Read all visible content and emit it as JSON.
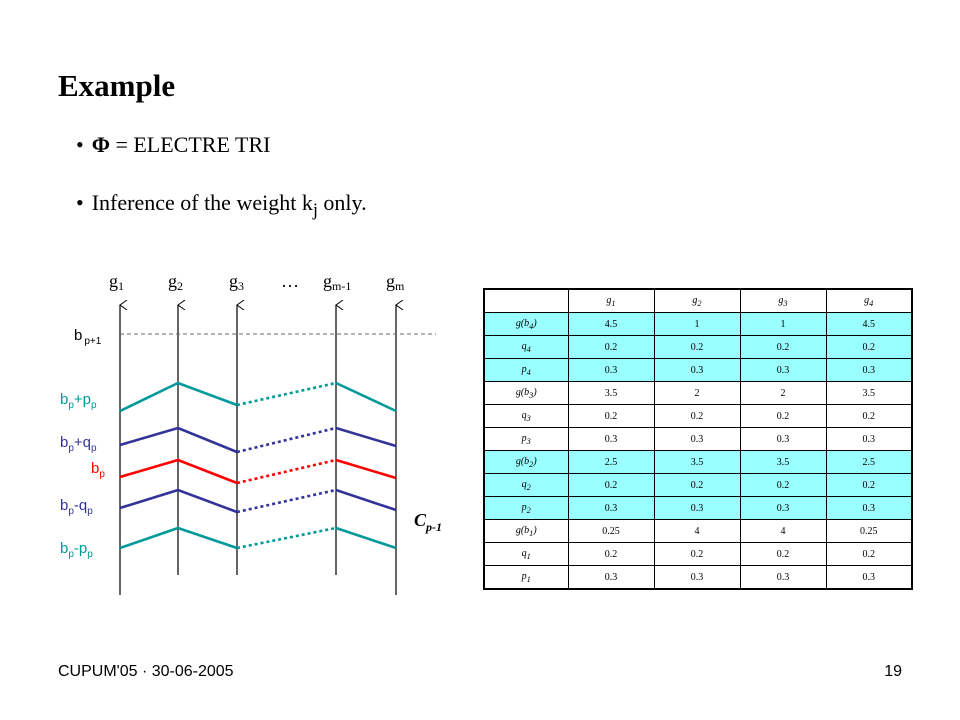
{
  "slide": {
    "title": "Example",
    "bullet_symbol": "•",
    "bullet1": {
      "phi": "Φ",
      "rest": " = ELECTRE TRI"
    },
    "bullet2": {
      "text": "Inference of the weight k",
      "sub": "j",
      "tail": " only."
    }
  },
  "diagram": {
    "criteria": [
      {
        "name": "g",
        "sub": "1"
      },
      {
        "name": "g",
        "sub": "2"
      },
      {
        "name": "g",
        "sub": "3"
      },
      {
        "name": "…",
        "sub": ""
      },
      {
        "name": "g",
        "sub": "m-1"
      },
      {
        "name": "g",
        "sub": "m"
      }
    ],
    "profile_labels": {
      "bp1": {
        "base": "b",
        "sub": "p+1"
      },
      "bp_pp": {
        "base": "b",
        "sub1": "p",
        "op": "+p",
        "sub2": "p"
      },
      "bp_qp": {
        "base": "b",
        "sub1": "p",
        "op": "+q",
        "sub2": "p"
      },
      "bp": {
        "base": "b",
        "sub1": "p"
      },
      "bp_mqp": {
        "base": "b",
        "sub1": "p",
        "op": "-q",
        "sub2": "p"
      },
      "bp_mpp": {
        "base": "b",
        "sub1": "p",
        "op": "-p",
        "sub2": "p"
      }
    },
    "category": {
      "base": "C",
      "sub": "p-1"
    },
    "colors": {
      "teal": "#009999",
      "navy": "#333399",
      "red": "#ff0000",
      "dash": "#666666"
    }
  },
  "table": {
    "headers": [
      "",
      "g1",
      "g2",
      "g3",
      "g4"
    ],
    "rows": [
      {
        "label": "g(b4)",
        "values": [
          "4.5",
          "1",
          "1",
          "4.5"
        ],
        "highlight": true
      },
      {
        "label": "q4",
        "values": [
          "0.2",
          "0.2",
          "0.2",
          "0.2"
        ],
        "highlight": true
      },
      {
        "label": "p4",
        "values": [
          "0.3",
          "0.3",
          "0.3",
          "0.3"
        ],
        "highlight": true
      },
      {
        "label": "g(b3)",
        "values": [
          "3.5",
          "2",
          "2",
          "3.5"
        ],
        "highlight": false
      },
      {
        "label": "q3",
        "values": [
          "0.2",
          "0.2",
          "0.2",
          "0.2"
        ],
        "highlight": false
      },
      {
        "label": "p3",
        "values": [
          "0.3",
          "0.3",
          "0.3",
          "0.3"
        ],
        "highlight": false
      },
      {
        "label": "g(b2)",
        "values": [
          "2.5",
          "3.5",
          "3.5",
          "2.5"
        ],
        "highlight": true
      },
      {
        "label": "q2",
        "values": [
          "0.2",
          "0.2",
          "0.2",
          "0.2"
        ],
        "highlight": true
      },
      {
        "label": "p2",
        "values": [
          "0.3",
          "0.3",
          "0.3",
          "0.3"
        ],
        "highlight": true
      },
      {
        "label": "g(b1)",
        "values": [
          "0.25",
          "4",
          "4",
          "0.25"
        ],
        "highlight": false
      },
      {
        "label": "q1",
        "values": [
          "0.2",
          "0.2",
          "0.2",
          "0.2"
        ],
        "highlight": false
      },
      {
        "label": "p1",
        "values": [
          "0.3",
          "0.3",
          "0.3",
          "0.3"
        ],
        "highlight": false
      }
    ]
  },
  "footer": {
    "left": "CUPUM'05 · 30-06-2005",
    "page": "19"
  }
}
